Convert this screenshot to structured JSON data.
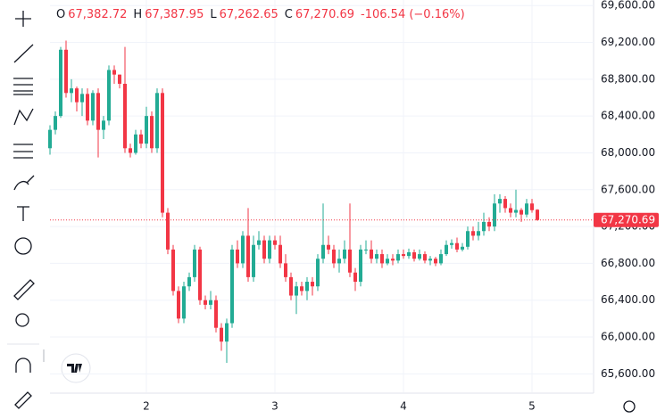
{
  "header": {
    "o": "O",
    "open": "67,382.72",
    "h": "H",
    "high": "67,387.95",
    "l": "L",
    "low": "67,262.65",
    "c": "C",
    "close": "67,270.69",
    "change": "-106.54 (−0.16%)"
  },
  "chart_data": {
    "type": "candlestick",
    "categories": [
      null,
      null,
      null,
      null,
      null,
      null,
      null,
      null,
      null,
      null,
      null,
      null,
      null,
      null,
      null,
      null,
      null,
      null,
      "2",
      null,
      null,
      null,
      null,
      null,
      null,
      null,
      null,
      null,
      null,
      null,
      null,
      null,
      null,
      null,
      null,
      null,
      null,
      null,
      null,
      null,
      null,
      null,
      "3",
      null,
      null,
      null,
      null,
      null,
      null,
      null,
      null,
      null,
      null,
      null,
      null,
      null,
      null,
      null,
      null,
      null,
      null,
      null,
      null,
      null,
      null,
      null,
      "4",
      null,
      null,
      null,
      null,
      null,
      null,
      null,
      null,
      null,
      null,
      null,
      null,
      null,
      null,
      null,
      null,
      null,
      null,
      null,
      null,
      null,
      null,
      null,
      "5",
      null
    ],
    "open": [
      68050,
      68250,
      68400,
      69120,
      68650,
      68700,
      68550,
      68640,
      68350,
      68650,
      68250,
      68350,
      68900,
      68850,
      68750,
      68050,
      68000,
      68200,
      68100,
      68400,
      68050,
      68650,
      67350,
      66950,
      66500,
      66200,
      66550,
      66650,
      66950,
      66400,
      66350,
      66400,
      66100,
      65950,
      66150,
      66950,
      66800,
      67100,
      66650,
      67000,
      67050,
      66850,
      67050,
      67000,
      66800,
      66650,
      66450,
      66550,
      66500,
      66600,
      66550,
      66850,
      67000,
      66950,
      66800,
      66850,
      66950,
      66700,
      66600,
      66950,
      66950,
      66850,
      66900,
      66800,
      66850,
      66830,
      66900,
      66880,
      66920,
      66850,
      66900,
      66830,
      66850,
      66800,
      66900,
      67000,
      67020,
      66950,
      66980,
      67150,
      67100,
      67150,
      67250,
      67200,
      67450,
      67500,
      67400,
      67350,
      67380,
      67330,
      67450,
      67382.72
    ],
    "high": [
      68300,
      68450,
      69150,
      69220,
      68800,
      68720,
      68700,
      68700,
      68680,
      68700,
      68400,
      68950,
      68950,
      68850,
      69150,
      68100,
      68250,
      68250,
      68500,
      68450,
      68700,
      68700,
      67400,
      67000,
      66550,
      66600,
      66700,
      67000,
      66980,
      66450,
      66500,
      66450,
      66150,
      66200,
      67000,
      67050,
      67150,
      67400,
      67100,
      67150,
      67100,
      67100,
      67100,
      67100,
      66900,
      66700,
      66600,
      66600,
      66650,
      66650,
      66900,
      67450,
      67100,
      67000,
      66950,
      67050,
      67450,
      66750,
      67000,
      67050,
      67050,
      66950,
      66950,
      66900,
      66900,
      66950,
      66950,
      66960,
      66950,
      66950,
      66930,
      66880,
      66870,
      66950,
      67050,
      67060,
      67080,
      67020,
      67200,
      67200,
      67250,
      67350,
      67300,
      67550,
      67550,
      67530,
      67450,
      67600,
      67400,
      67500,
      67500,
      67387.95
    ],
    "low": [
      67980,
      68200,
      68380,
      68600,
      68550,
      68450,
      68400,
      68300,
      68300,
      67950,
      68150,
      68300,
      68750,
      68700,
      68000,
      67950,
      67980,
      68050,
      68050,
      68000,
      68000,
      67300,
      66900,
      66450,
      66150,
      66150,
      66500,
      66600,
      66350,
      66300,
      66300,
      66050,
      65850,
      65720,
      66100,
      66750,
      66750,
      66600,
      66600,
      66950,
      66800,
      66800,
      66950,
      66750,
      66600,
      66400,
      66250,
      66450,
      66400,
      66450,
      66500,
      66800,
      66900,
      66750,
      66700,
      66800,
      66650,
      66500,
      66550,
      66900,
      66800,
      66800,
      66750,
      66780,
      66780,
      66800,
      66850,
      66850,
      66820,
      66830,
      66800,
      66780,
      66770,
      66780,
      66880,
      66960,
      66920,
      66930,
      66950,
      67050,
      67050,
      67100,
      67150,
      67150,
      67350,
      67350,
      67300,
      67300,
      67250,
      67300,
      67350,
      67262.65
    ],
    "close": [
      68250,
      68400,
      69120,
      68650,
      68700,
      68550,
      68640,
      68350,
      68650,
      68250,
      68350,
      68900,
      68850,
      68750,
      68050,
      68000,
      68200,
      68100,
      68400,
      68050,
      68650,
      67350,
      66950,
      66500,
      66200,
      66550,
      66650,
      66950,
      66400,
      66350,
      66400,
      66100,
      65950,
      66150,
      66950,
      66800,
      67100,
      66650,
      67000,
      67050,
      66850,
      67050,
      67000,
      66800,
      66650,
      66450,
      66550,
      66500,
      66600,
      66550,
      66850,
      67000,
      66950,
      66800,
      66850,
      66950,
      66700,
      66600,
      66950,
      66950,
      66850,
      66900,
      66800,
      66850,
      66830,
      66900,
      66880,
      66920,
      66850,
      66900,
      66830,
      66850,
      66800,
      66900,
      67000,
      67020,
      66950,
      66980,
      67150,
      67100,
      67150,
      67250,
      67200,
      67450,
      67500,
      67400,
      67350,
      67380,
      67330,
      67450,
      67377.23,
      67270.69
    ],
    "up_color": "#22ab94",
    "down_color": "#f23645",
    "ylim": [
      65400,
      69660
    ],
    "yticks": [
      {
        "value": 65600,
        "label": "65,600.00"
      },
      {
        "value": 66000,
        "label": "66,000.00"
      },
      {
        "value": 66400,
        "label": "66,400.00"
      },
      {
        "value": 66800,
        "label": "66,800.00"
      },
      {
        "value": 67200,
        "label": "67,200.00"
      },
      {
        "value": 67600,
        "label": "67,600.00"
      },
      {
        "value": 68000,
        "label": "68,000.00"
      },
      {
        "value": 68400,
        "label": "68,400.00"
      },
      {
        "value": 68800,
        "label": "68,800.00"
      },
      {
        "value": 69200,
        "label": "69,200.00"
      },
      {
        "value": 69600,
        "label": "69,600.00"
      }
    ],
    "grid": true
  }
}
